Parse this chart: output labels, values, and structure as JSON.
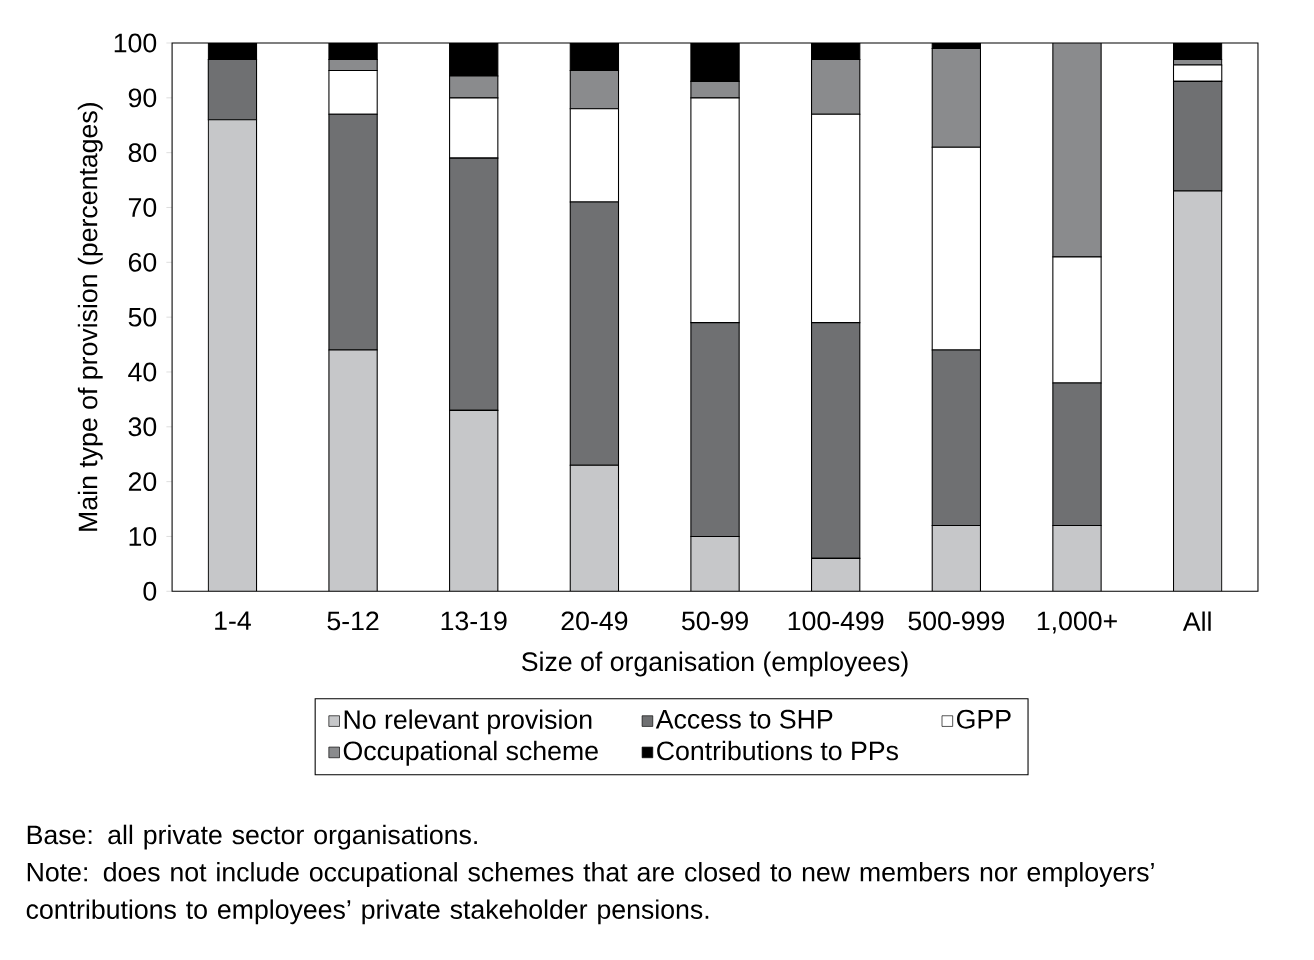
{
  "chart_data": {
    "type": "bar",
    "stacked": true,
    "xlabel": "Size of organisation (employees)",
    "ylabel": "Main type of provision (percentages)",
    "categories": [
      "1-4",
      "5-12",
      "13-19",
      "20-49",
      "50-99",
      "100-499",
      "500-999",
      "1,000+",
      "All"
    ],
    "series": [
      {
        "name": "No relevant provision",
        "color": "#c6c7c9",
        "values": [
          86,
          44,
          33,
          23,
          10,
          6,
          12,
          12,
          73
        ]
      },
      {
        "name": "Access to SHP",
        "color": "#6f7072",
        "values": [
          11,
          43,
          46,
          48,
          39,
          43,
          32,
          26,
          20
        ]
      },
      {
        "name": "GPP",
        "color": "#ffffff",
        "values": [
          0,
          8,
          11,
          17,
          41,
          38,
          37,
          23,
          3
        ]
      },
      {
        "name": "Occupational scheme",
        "color": "#8a8b8d",
        "values": [
          0,
          2,
          4,
          7,
          3,
          10,
          18,
          39,
          1
        ]
      },
      {
        "name": "Contributions to PPs",
        "color": "#000000",
        "values": [
          3,
          3,
          6,
          5,
          7,
          3,
          1,
          0,
          3
        ]
      }
    ],
    "ylim": [
      0,
      100
    ],
    "yticks": [
      0,
      10,
      20,
      30,
      40,
      50,
      60,
      70,
      80,
      90,
      100
    ],
    "legend": "bottom",
    "annotations": [
      "Base: all private sector organisations.",
      "Note: does not include occupational schemes that are closed to new members nor employers’ contributions to employees’ private stakeholder pensions."
    ]
  }
}
